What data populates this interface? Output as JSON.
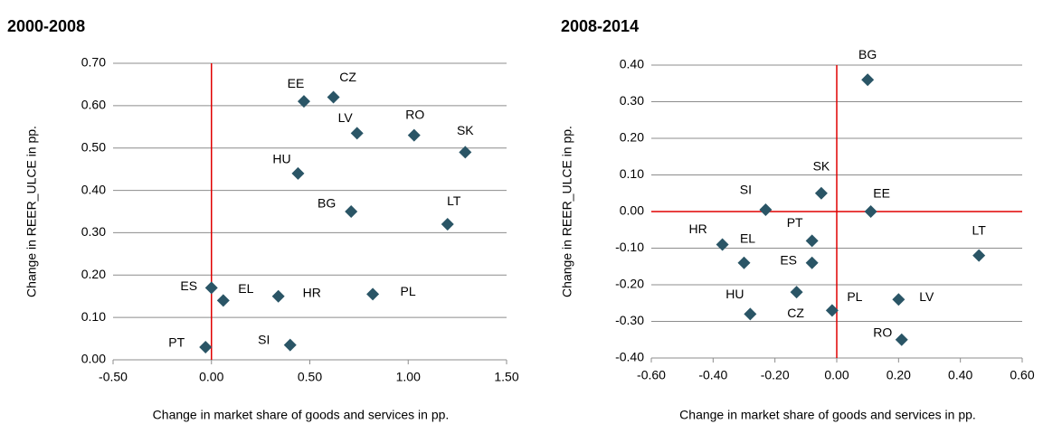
{
  "chart_data": [
    {
      "type": "scatter",
      "title": "2000-2008",
      "xlabel": "Change in market share of goods and services in pp.",
      "ylabel": "Change in REER_ULCE in pp.",
      "color": "#2a5566",
      "grid": true,
      "reference_lines": {
        "x": 0,
        "color": "#e00000"
      },
      "xlim": [
        -0.5,
        1.5
      ],
      "ylim": [
        0,
        0.7
      ],
      "xticks": [
        {
          "value": -0.5,
          "label": "-0.50"
        },
        {
          "value": 0,
          "label": "0.00"
        },
        {
          "value": 0.5,
          "label": "0.50"
        },
        {
          "value": 1.0,
          "label": "1.00"
        },
        {
          "value": 1.5,
          "label": "1.50"
        }
      ],
      "yticks": [
        {
          "value": 0,
          "label": "0.00"
        },
        {
          "value": 0.1,
          "label": "0.10"
        },
        {
          "value": 0.2,
          "label": "0.20"
        },
        {
          "value": 0.3,
          "label": "0.30"
        },
        {
          "value": 0.4,
          "label": "0.40"
        },
        {
          "value": 0.5,
          "label": "0.50"
        },
        {
          "value": 0.6,
          "label": "0.60"
        },
        {
          "value": 0.7,
          "label": "0.70"
        }
      ],
      "labels": [
        "EE",
        "CZ",
        "LV",
        "RO",
        "SK",
        "HU",
        "BG",
        "LT",
        "ES",
        "EL",
        "HR",
        "PL",
        "PT",
        "SI"
      ],
      "x": [
        0.47,
        0.62,
        0.74,
        1.03,
        1.29,
        0.44,
        0.71,
        1.2,
        0.0,
        0.06,
        0.34,
        0.82,
        -0.03,
        0.4
      ],
      "values": [
        0.61,
        0.62,
        0.535,
        0.53,
        0.49,
        0.44,
        0.35,
        0.32,
        0.17,
        0.14,
        0.15,
        0.155,
        0.03,
        0.035
      ]
    },
    {
      "type": "scatter",
      "title": "2008-2014",
      "xlabel": "Change in market share of goods and services in pp.",
      "ylabel": "Change in REER_ULCE in pp.",
      "color": "#2a5566",
      "grid": true,
      "reference_lines": {
        "x": 0,
        "y": 0,
        "color": "#e00000"
      },
      "xlim": [
        -0.6,
        0.6
      ],
      "ylim": [
        -0.4,
        0.4
      ],
      "xticks": [
        {
          "value": -0.6,
          "label": "-0.60"
        },
        {
          "value": -0.4,
          "label": "-0.40"
        },
        {
          "value": -0.2,
          "label": "-0.20"
        },
        {
          "value": 0,
          "label": "0.00"
        },
        {
          "value": 0.2,
          "label": "0.20"
        },
        {
          "value": 0.4,
          "label": "0.40"
        },
        {
          "value": 0.6,
          "label": "0.60"
        }
      ],
      "yticks": [
        {
          "value": -0.4,
          "label": "-0.40"
        },
        {
          "value": -0.3,
          "label": "-0.30"
        },
        {
          "value": -0.2,
          "label": "-0.20"
        },
        {
          "value": -0.1,
          "label": "-0.10"
        },
        {
          "value": 0,
          "label": "0.00"
        },
        {
          "value": 0.1,
          "label": "0.10"
        },
        {
          "value": 0.2,
          "label": "0.20"
        },
        {
          "value": 0.3,
          "label": "0.30"
        },
        {
          "value": 0.4,
          "label": "0.40"
        }
      ],
      "labels": [
        "BG",
        "SK",
        "SI",
        "EE",
        "HR",
        "PT",
        "EL",
        "ES",
        "LT",
        "HU",
        "CZ",
        "PL",
        "LV",
        "RO"
      ],
      "x": [
        0.1,
        -0.05,
        -0.23,
        0.11,
        -0.37,
        -0.08,
        -0.3,
        -0.08,
        0.46,
        -0.28,
        -0.13,
        -0.015,
        0.2,
        0.21
      ],
      "values": [
        0.36,
        0.05,
        0.005,
        0.0,
        -0.09,
        -0.08,
        -0.14,
        -0.14,
        -0.12,
        -0.28,
        -0.22,
        -0.27,
        -0.24,
        -0.35
      ]
    }
  ]
}
